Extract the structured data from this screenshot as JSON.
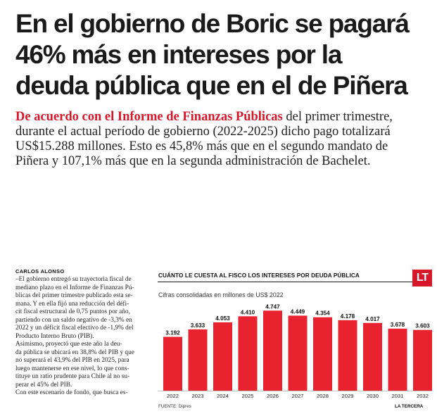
{
  "headline": {
    "lines": [
      "En el gobierno de Boric se pagará",
      "46% más en intereses por la",
      "deuda pública que en el de Piñera"
    ]
  },
  "lead": {
    "highlight": "De acuerdo con el Informe de Finanzas Públicas",
    "line1_rest": " del primer trimestre,",
    "lines": [
      "durante el actual período de gobierno (2022-2025) dicho pago totalizará",
      "US$15.288 millones. Esto es 45,8% más que en el segundo mandato de",
      "Piñera y 107,1% más que en la segunda administración de Bachelet."
    ]
  },
  "article": {
    "byline": "CARLOS ALONSO",
    "lines": [
      "–El gobierno entregó su trayectoria fiscal de",
      "mediano plazo en el Informe de Finanzas Pú-",
      "blicas del primer trimestre publicado esta se-",
      "mana. Y en ella fijó una reducción del défi-",
      "cit fiscal estructural de 0,75 puntos por año,",
      "partiendo con un saldo negativo de -3,3% en",
      "2022 y un déficit fiscal efectivo de -1,9% del",
      "Producto Interno Bruto (PIB).",
      "   Asimismo, proyectó que este año la deu-",
      "da pública se ubicará en 38,8% del PIB y que",
      "no superará el 43,9% del PIB en 2025, para",
      "luego mantenerse en ese nivel, lo que cons-",
      "tituye un ratio prudente para Chile al no su-",
      "perar el 45% del PIB.",
      "   Con este escenario de fondo, que busca es-"
    ]
  },
  "chart": {
    "logo": "LT",
    "source": "FUENTE: Dipres",
    "credit": "LA TERCERA"
  },
  "chart_data": {
    "type": "bar",
    "title": "CUÁNTO LE CUESTA AL FISCO LOS INTERESES POR DEUDA PÚBLICA",
    "subtitle": "Cifras consolidadas en millones de US$ 2022",
    "categories": [
      "2022",
      "2023",
      "2024",
      "2025",
      "2026",
      "2027",
      "2028",
      "2029",
      "2030",
      "2031",
      "2032"
    ],
    "values": [
      3192,
      3633,
      4053,
      4410,
      4747,
      4449,
      4354,
      4178,
      4017,
      3678,
      3603
    ],
    "labels": [
      "3.192",
      "3.633",
      "4.053",
      "4.410",
      "4.747",
      "4.449",
      "4.354",
      "4.178",
      "4.017",
      "3.678",
      "3.603"
    ],
    "ylim": [
      0,
      4800
    ],
    "grid": false,
    "bar_color": "#e8232f"
  }
}
